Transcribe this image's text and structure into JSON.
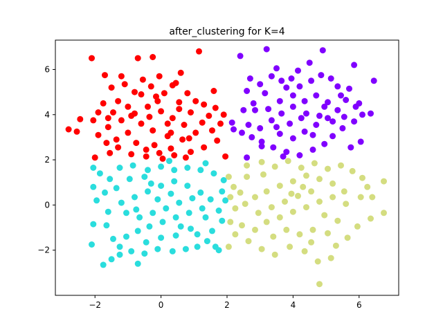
{
  "chart_data": {
    "type": "scatter",
    "title": "after_clustering for K=4",
    "xlabel": "",
    "ylabel": "",
    "xlim": [
      -3.2,
      7.2
    ],
    "ylim": [
      -4.0,
      7.3
    ],
    "x_ticks": [
      -2,
      0,
      2,
      4,
      6
    ],
    "y_ticks": [
      -2,
      0,
      2,
      4,
      6
    ],
    "grid": false,
    "legend": "none",
    "series": [
      {
        "color": "#ff0000",
        "points": [
          [
            -2.8,
            3.35
          ],
          [
            -2.55,
            3.25
          ],
          [
            -2.45,
            3.8
          ],
          [
            -2.05,
            3.75
          ],
          [
            -1.9,
            4.1
          ],
          [
            -1.6,
            3.85
          ],
          [
            -1.5,
            5.2
          ],
          [
            -1.3,
            4.6
          ],
          [
            -1.1,
            5.35
          ],
          [
            -0.8,
            5.0
          ],
          [
            -0.55,
            5.55
          ],
          [
            -0.3,
            5.25
          ],
          [
            0.1,
            4.95
          ],
          [
            0.45,
            5.4
          ],
          [
            0.8,
            4.95
          ],
          [
            1.05,
            4.6
          ],
          [
            1.3,
            4.45
          ],
          [
            1.65,
            4.3
          ],
          [
            1.9,
            4.0
          ],
          [
            1.8,
            3.6
          ],
          [
            1.55,
            3.3
          ],
          [
            1.7,
            2.85
          ],
          [
            1.3,
            2.55
          ],
          [
            0.9,
            2.35
          ],
          [
            0.4,
            2.2
          ],
          [
            -0.05,
            2.3
          ],
          [
            -0.45,
            2.45
          ],
          [
            -0.9,
            2.25
          ],
          [
            -1.3,
            2.55
          ],
          [
            -1.65,
            2.75
          ],
          [
            -1.9,
            3.1
          ],
          [
            -1.6,
            3.45
          ],
          [
            -1.2,
            3.75
          ],
          [
            -0.8,
            4.05
          ],
          [
            -0.4,
            4.35
          ],
          [
            0.0,
            4.15
          ],
          [
            0.35,
            3.85
          ],
          [
            0.7,
            3.55
          ],
          [
            1.05,
            3.2
          ],
          [
            0.65,
            2.9
          ],
          [
            0.2,
            3.05
          ],
          [
            -0.25,
            3.3
          ],
          [
            -0.6,
            3.6
          ],
          [
            -1.0,
            3.2
          ],
          [
            -1.35,
            2.9
          ],
          [
            -0.75,
            2.75
          ],
          [
            -0.2,
            2.65
          ],
          [
            0.3,
            2.5
          ],
          [
            0.85,
            2.95
          ],
          [
            1.25,
            3.65
          ],
          [
            0.55,
            4.25
          ],
          [
            -0.1,
            4.6
          ],
          [
            -0.6,
            4.9
          ],
          [
            -1.0,
            4.35
          ],
          [
            -1.45,
            4.1
          ],
          [
            0.2,
            3.6
          ],
          [
            -0.35,
            3.9
          ],
          [
            0.9,
            4.1
          ],
          [
            1.45,
            3.95
          ],
          [
            -2.1,
            6.5
          ],
          [
            -0.7,
            6.5
          ],
          [
            -0.25,
            6.55
          ],
          [
            1.15,
            6.8
          ],
          [
            -1.7,
            5.75
          ],
          [
            -1.2,
            5.7
          ],
          [
            0.6,
            5.85
          ],
          [
            -0.05,
            5.7
          ],
          [
            0.3,
            3.2
          ],
          [
            -0.9,
            3.95
          ],
          [
            0.05,
            2.05
          ],
          [
            0.75,
            2.1
          ],
          [
            1.95,
            2.15
          ],
          [
            -2.0,
            2.1
          ],
          [
            -1.55,
            2.3
          ],
          [
            -0.45,
            2.15
          ],
          [
            0.35,
            5.3
          ],
          [
            -0.15,
            4.8
          ],
          [
            0.55,
            4.55
          ],
          [
            -1.75,
            4.5
          ],
          [
            1.6,
            5.05
          ]
        ]
      },
      {
        "color": "#8000ff",
        "points": [
          [
            2.2,
            3.35
          ],
          [
            2.45,
            3.2
          ],
          [
            2.15,
            3.65
          ],
          [
            2.65,
            3.55
          ],
          [
            2.5,
            4.2
          ],
          [
            2.8,
            4.5
          ],
          [
            2.6,
            5.05
          ],
          [
            3.0,
            5.35
          ],
          [
            3.35,
            5.7
          ],
          [
            3.65,
            5.5
          ],
          [
            3.95,
            5.6
          ],
          [
            4.2,
            5.25
          ],
          [
            4.55,
            5.5
          ],
          [
            4.85,
            5.75
          ],
          [
            5.15,
            5.6
          ],
          [
            5.35,
            5.25
          ],
          [
            5.7,
            5.15
          ],
          [
            5.6,
            4.65
          ],
          [
            5.9,
            4.35
          ],
          [
            6.1,
            4.0
          ],
          [
            5.85,
            3.7
          ],
          [
            5.5,
            3.4
          ],
          [
            5.2,
            3.05
          ],
          [
            4.95,
            2.7
          ],
          [
            4.6,
            2.45
          ],
          [
            4.2,
            2.2
          ],
          [
            3.8,
            2.35
          ],
          [
            3.4,
            2.55
          ],
          [
            3.05,
            2.8
          ],
          [
            2.75,
            3.0
          ],
          [
            3.0,
            3.4
          ],
          [
            3.35,
            3.75
          ],
          [
            3.65,
            4.05
          ],
          [
            4.0,
            4.35
          ],
          [
            4.35,
            4.6
          ],
          [
            4.7,
            4.85
          ],
          [
            5.05,
            4.55
          ],
          [
            5.35,
            4.2
          ],
          [
            5.05,
            3.85
          ],
          [
            4.7,
            3.55
          ],
          [
            4.35,
            3.25
          ],
          [
            4.0,
            2.95
          ],
          [
            3.6,
            3.15
          ],
          [
            3.25,
            4.25
          ],
          [
            3.6,
            4.6
          ],
          [
            4.0,
            4.85
          ],
          [
            4.4,
            4.05
          ],
          [
            4.8,
            3.95
          ],
          [
            5.2,
            3.7
          ],
          [
            3.9,
            3.6
          ],
          [
            3.5,
            3.45
          ],
          [
            4.25,
            3.85
          ],
          [
            4.6,
            3.1
          ],
          [
            3.15,
            4.95
          ],
          [
            2.85,
            4.2
          ],
          [
            5.45,
            4.85
          ],
          [
            2.4,
            6.6
          ],
          [
            3.2,
            6.9
          ],
          [
            4.9,
            6.85
          ],
          [
            5.85,
            6.2
          ],
          [
            6.45,
            5.5
          ],
          [
            6.0,
            4.5
          ],
          [
            6.35,
            4.05
          ],
          [
            6.05,
            2.8
          ],
          [
            5.75,
            2.55
          ],
          [
            3.05,
            2.6
          ],
          [
            2.6,
            2.1
          ],
          [
            3.7,
            2.15
          ],
          [
            4.15,
            5.95
          ],
          [
            4.5,
            6.3
          ],
          [
            3.5,
            6.05
          ],
          [
            2.7,
            5.6
          ],
          [
            5.55,
            3.9
          ],
          [
            4.95,
            4.35
          ],
          [
            3.8,
            5.2
          ]
        ]
      },
      {
        "color": "#2adddd",
        "points": [
          [
            -2.05,
            1.65
          ],
          [
            -2.05,
            0.8
          ],
          [
            -1.95,
            0.2
          ],
          [
            -2.05,
            -0.85
          ],
          [
            -2.1,
            -1.75
          ],
          [
            -1.75,
            -2.65
          ],
          [
            -1.5,
            -2.4
          ],
          [
            -1.45,
            -1.5
          ],
          [
            -1.65,
            -0.9
          ],
          [
            -1.6,
            -0.3
          ],
          [
            -1.7,
            0.55
          ],
          [
            -1.55,
            1.15
          ],
          [
            -1.25,
            1.65
          ],
          [
            -0.85,
            1.75
          ],
          [
            -0.4,
            1.55
          ],
          [
            0.0,
            1.7
          ],
          [
            0.4,
            1.55
          ],
          [
            0.8,
            1.65
          ],
          [
            1.2,
            1.55
          ],
          [
            1.6,
            1.4
          ],
          [
            1.9,
            1.1
          ],
          [
            1.85,
            0.6
          ],
          [
            1.95,
            0.2
          ],
          [
            1.75,
            -0.25
          ],
          [
            1.85,
            -0.7
          ],
          [
            1.55,
            -1.15
          ],
          [
            1.4,
            -1.6
          ],
          [
            1.1,
            -1.85
          ],
          [
            0.75,
            -1.95
          ],
          [
            0.35,
            -2.05
          ],
          [
            -0.1,
            -1.95
          ],
          [
            -0.5,
            -2.15
          ],
          [
            -0.9,
            -2.05
          ],
          [
            -1.25,
            -1.85
          ],
          [
            -1.05,
            -1.4
          ],
          [
            -0.7,
            -1.15
          ],
          [
            -0.35,
            -0.95
          ],
          [
            0.05,
            -0.75
          ],
          [
            0.45,
            -0.55
          ],
          [
            0.85,
            -0.35
          ],
          [
            1.25,
            -0.15
          ],
          [
            1.5,
            0.25
          ],
          [
            1.2,
            0.55
          ],
          [
            0.8,
            0.85
          ],
          [
            0.4,
            1.05
          ],
          [
            0.0,
            0.85
          ],
          [
            -0.4,
            0.6
          ],
          [
            -0.8,
            0.35
          ],
          [
            -1.2,
            0.1
          ],
          [
            -1.05,
            -0.35
          ],
          [
            -0.65,
            -0.55
          ],
          [
            -0.25,
            -0.35
          ],
          [
            0.15,
            -0.15
          ],
          [
            0.55,
            0.1
          ],
          [
            0.95,
            0.3
          ],
          [
            1.35,
            -0.55
          ],
          [
            0.9,
            -1.05
          ],
          [
            0.45,
            -1.35
          ],
          [
            0.0,
            -1.45
          ],
          [
            -0.45,
            -1.65
          ],
          [
            -1.35,
            0.75
          ],
          [
            -0.95,
            1.15
          ],
          [
            -0.5,
            1.25
          ],
          [
            0.3,
            0.5
          ],
          [
            -0.1,
            0.25
          ],
          [
            0.6,
            -0.95
          ],
          [
            1.1,
            -1.3
          ],
          [
            -0.75,
            -0.2
          ],
          [
            -0.3,
            0.95
          ],
          [
            1.65,
            -1.85
          ],
          [
            1.75,
            -2.0
          ],
          [
            -0.7,
            -2.6
          ],
          [
            -1.25,
            -2.2
          ],
          [
            0.25,
            1.95
          ],
          [
            1.35,
            1.85
          ],
          [
            -1.85,
            1.4
          ]
        ]
      },
      {
        "color": "#d4dd80",
        "points": [
          [
            2.05,
            1.25
          ],
          [
            2.2,
            0.8
          ],
          [
            2.1,
            0.35
          ],
          [
            2.25,
            -0.15
          ],
          [
            2.1,
            -0.75
          ],
          [
            2.25,
            -1.3
          ],
          [
            2.05,
            -1.85
          ],
          [
            2.45,
            -0.9
          ],
          [
            2.6,
            1.75
          ],
          [
            3.05,
            1.9
          ],
          [
            3.45,
            1.7
          ],
          [
            3.85,
            1.95
          ],
          [
            4.25,
            1.65
          ],
          [
            4.65,
            1.85
          ],
          [
            5.05,
            1.6
          ],
          [
            5.45,
            1.75
          ],
          [
            5.8,
            1.5
          ],
          [
            6.1,
            1.2
          ],
          [
            6.25,
            0.8
          ],
          [
            6.05,
            0.35
          ],
          [
            6.4,
            0.35
          ],
          [
            6.75,
            1.05
          ],
          [
            6.75,
            -0.35
          ],
          [
            6.35,
            -0.6
          ],
          [
            5.95,
            -0.95
          ],
          [
            5.65,
            -1.45
          ],
          [
            5.3,
            -1.8
          ],
          [
            5.15,
            -2.35
          ],
          [
            4.75,
            -2.5
          ],
          [
            4.8,
            -3.5
          ],
          [
            4.35,
            -2.05
          ],
          [
            3.9,
            -1.85
          ],
          [
            3.45,
            -2.2
          ],
          [
            3.05,
            -1.95
          ],
          [
            2.65,
            -1.6
          ],
          [
            2.85,
            -1.1
          ],
          [
            3.2,
            -0.75
          ],
          [
            3.6,
            -0.55
          ],
          [
            4.0,
            -0.3
          ],
          [
            4.4,
            -0.1
          ],
          [
            4.8,
            0.15
          ],
          [
            5.2,
            0.35
          ],
          [
            5.55,
            0.6
          ],
          [
            5.2,
            0.95
          ],
          [
            4.8,
            1.15
          ],
          [
            4.4,
            1.3
          ],
          [
            4.0,
            1.05
          ],
          [
            3.6,
            0.85
          ],
          [
            3.2,
            0.6
          ],
          [
            2.85,
            0.35
          ],
          [
            2.55,
            0.05
          ],
          [
            2.95,
            -0.35
          ],
          [
            3.35,
            -0.1
          ],
          [
            3.75,
            0.15
          ],
          [
            4.15,
            0.4
          ],
          [
            4.55,
            0.6
          ],
          [
            4.95,
            -0.45
          ],
          [
            5.35,
            -0.7
          ],
          [
            4.6,
            -1.1
          ],
          [
            4.2,
            -1.3
          ],
          [
            3.8,
            -1.1
          ],
          [
            3.4,
            -1.4
          ],
          [
            4.55,
            -1.65
          ],
          [
            5.05,
            -1.25
          ],
          [
            5.6,
            0.05
          ],
          [
            2.6,
            1.25
          ],
          [
            3.95,
            0.5
          ],
          [
            3.1,
            1.35
          ],
          [
            4.3,
            0.8
          ],
          [
            2.4,
            0.55
          ]
        ]
      }
    ]
  }
}
